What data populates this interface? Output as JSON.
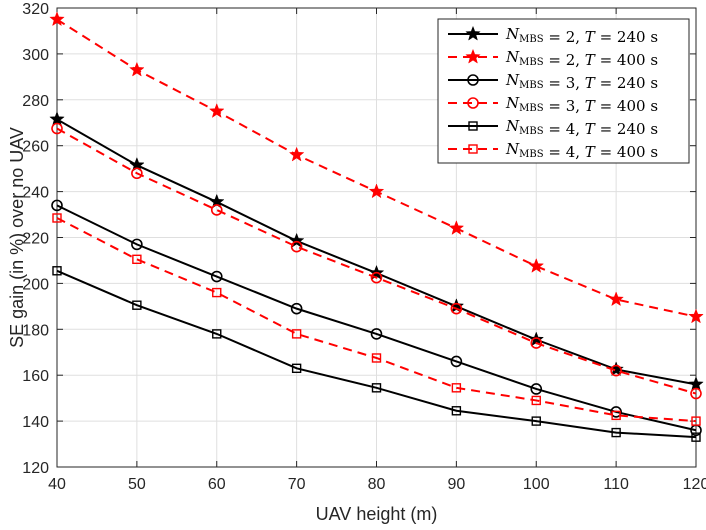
{
  "chart_data": {
    "type": "line",
    "title": "",
    "xlabel": "UAV height (m)",
    "ylabel": "SE gain (in %) over no UAV",
    "xlim": [
      40,
      120
    ],
    "ylim": [
      120,
      320
    ],
    "x": [
      40,
      50,
      60,
      70,
      80,
      90,
      100,
      110,
      120
    ],
    "xticks": [
      "40",
      "50",
      "60",
      "70",
      "80",
      "90",
      "100",
      "110",
      "120"
    ],
    "yticks": [
      "120",
      "140",
      "160",
      "180",
      "200",
      "220",
      "240",
      "260",
      "280",
      "300",
      "320"
    ],
    "grid": true,
    "legend_position": "top-right",
    "series": [
      {
        "name": "N_MBS = 2, T = 240 s",
        "n": "2",
        "t": "240",
        "color": "#000000",
        "dashed": false,
        "marker": "star",
        "values": [
          271.5,
          251.5,
          235.5,
          218.5,
          204.5,
          190.0,
          175.5,
          162.5,
          156.0
        ]
      },
      {
        "name": "N_MBS = 2, T = 400 s",
        "n": "2",
        "t": "400",
        "color": "#ff0000",
        "dashed": true,
        "marker": "star",
        "values": [
          315.0,
          293.0,
          275.0,
          256.0,
          240.0,
          224.0,
          207.5,
          193.0,
          185.5
        ]
      },
      {
        "name": "N_MBS = 3, T = 240 s",
        "n": "3",
        "t": "240",
        "color": "#000000",
        "dashed": false,
        "marker": "circle",
        "values": [
          234.0,
          217.0,
          203.0,
          189.0,
          178.0,
          166.0,
          154.0,
          144.0,
          136.0
        ]
      },
      {
        "name": "N_MBS = 3, T = 400 s",
        "n": "3",
        "t": "400",
        "color": "#ff0000",
        "dashed": true,
        "marker": "circle",
        "values": [
          267.5,
          248.0,
          232.0,
          216.0,
          202.5,
          189.0,
          174.0,
          162.0,
          152.0
        ]
      },
      {
        "name": "N_MBS = 4, T = 240 s",
        "n": "4",
        "t": "240",
        "color": "#000000",
        "dashed": false,
        "marker": "square",
        "values": [
          205.5,
          190.5,
          178.0,
          163.0,
          154.5,
          144.5,
          140.0,
          135.0,
          133.0
        ]
      },
      {
        "name": "N_MBS = 4, T = 400 s",
        "n": "4",
        "t": "400",
        "color": "#ff0000",
        "dashed": true,
        "marker": "square",
        "values": [
          228.5,
          210.5,
          196.0,
          178.0,
          167.5,
          154.5,
          149.0,
          142.5,
          140.0
        ]
      }
    ]
  }
}
